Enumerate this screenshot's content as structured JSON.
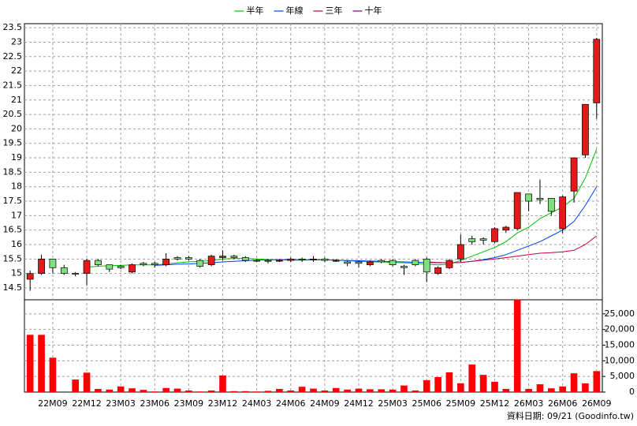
{
  "chart_data": {
    "type": "candlestick",
    "categories": [
      null,
      null,
      "22M09",
      null,
      null,
      "22M12",
      null,
      null,
      "23M03",
      null,
      null,
      "23M06",
      null,
      null,
      "23M09",
      null,
      null,
      "23M12",
      null,
      null,
      "24M03",
      null,
      null,
      "24M06",
      null,
      null,
      "24M09",
      null,
      null,
      "24M12",
      null,
      null,
      "25M03",
      null,
      null,
      "25M06",
      null,
      null,
      "25M09",
      null,
      null,
      "25M12",
      null,
      null,
      "26M03",
      null,
      null,
      "26M06",
      null,
      null,
      "26M09"
    ],
    "open": [
      14.8,
      15.0,
      15.5,
      15.2,
      15.0,
      15.0,
      15.45,
      15.3,
      15.25,
      15.05,
      15.35,
      15.35,
      15.3,
      15.55,
      15.55,
      15.45,
      15.3,
      15.55,
      15.6,
      15.55,
      15.45,
      15.45,
      15.45,
      15.45,
      15.5,
      15.5,
      15.5,
      15.45,
      15.4,
      15.4,
      15.3,
      15.45,
      15.45,
      15.25,
      15.45,
      15.5,
      15.0,
      15.2,
      15.5,
      16.2,
      16.2,
      16.1,
      16.5,
      16.55,
      17.75,
      17.6,
      17.6,
      16.55,
      17.85,
      19.1,
      20.9
    ],
    "high": [
      15.1,
      15.65,
      15.5,
      15.3,
      15.05,
      15.5,
      15.5,
      15.3,
      15.3,
      15.35,
      15.4,
      15.4,
      15.7,
      15.6,
      15.6,
      15.5,
      15.65,
      15.8,
      15.65,
      15.6,
      15.5,
      15.5,
      15.5,
      15.55,
      15.55,
      15.6,
      15.55,
      15.5,
      15.45,
      15.45,
      15.45,
      15.5,
      15.5,
      15.3,
      15.5,
      15.55,
      15.25,
      15.5,
      16.35,
      16.3,
      16.25,
      16.6,
      16.65,
      17.8,
      17.75,
      18.25,
      17.6,
      17.7,
      19.0,
      20.85,
      23.15
    ],
    "low": [
      14.4,
      14.95,
      15.0,
      14.95,
      14.9,
      14.6,
      15.25,
      15.05,
      15.15,
      15.0,
      15.25,
      15.2,
      15.25,
      15.45,
      15.45,
      15.2,
      15.25,
      15.45,
      15.5,
      15.4,
      15.4,
      15.35,
      15.4,
      15.4,
      15.4,
      15.4,
      15.4,
      15.4,
      15.25,
      15.2,
      15.25,
      15.35,
      15.25,
      14.95,
      15.25,
      14.7,
      14.95,
      15.15,
      15.4,
      16.0,
      16.0,
      16.05,
      16.4,
      16.5,
      17.15,
      17.4,
      17.0,
      16.4,
      17.45,
      19.0,
      20.35
    ],
    "close": [
      15.0,
      15.5,
      15.2,
      15.0,
      14.98,
      15.45,
      15.3,
      15.15,
      15.2,
      15.3,
      15.3,
      15.3,
      15.5,
      15.5,
      15.5,
      15.25,
      15.6,
      15.6,
      15.55,
      15.45,
      15.43,
      15.42,
      15.45,
      15.5,
      15.47,
      15.5,
      15.45,
      15.45,
      15.35,
      15.35,
      15.4,
      15.4,
      15.3,
      15.2,
      15.3,
      15.05,
      15.2,
      15.45,
      16.0,
      16.1,
      16.15,
      16.55,
      16.6,
      17.8,
      17.5,
      17.55,
      17.15,
      17.65,
      19.0,
      20.85,
      23.1
    ],
    "up_color": "#e41a1a",
    "down_color": "#7de07d",
    "ylim": [
      14.09,
      23.64
    ],
    "yticks": [
      14.5,
      15,
      15.5,
      16,
      16.5,
      17,
      17.5,
      18,
      18.5,
      19,
      19.5,
      20,
      20.5,
      21,
      21.5,
      22,
      22.5,
      23,
      23.5
    ],
    "grid": true,
    "legend": "top",
    "series": [
      {
        "name": "半年",
        "color": "#00c000",
        "values": [
          null,
          null,
          null,
          null,
          null,
          15.22,
          15.25,
          15.27,
          15.28,
          15.3,
          15.3,
          15.3,
          15.33,
          15.37,
          15.4,
          15.42,
          15.45,
          15.5,
          15.52,
          15.52,
          15.5,
          15.48,
          15.47,
          15.46,
          15.46,
          15.47,
          15.47,
          15.46,
          15.44,
          15.42,
          15.4,
          15.4,
          15.38,
          15.37,
          15.35,
          15.32,
          15.3,
          15.32,
          15.45,
          15.6,
          15.75,
          15.9,
          16.1,
          16.4,
          16.6,
          16.9,
          17.1,
          17.3,
          17.6,
          18.3,
          19.3
        ]
      },
      {
        "name": "年線",
        "color": "#0040ff",
        "values": [
          null,
          null,
          null,
          null,
          null,
          null,
          null,
          null,
          null,
          null,
          null,
          15.28,
          15.3,
          15.32,
          15.33,
          15.35,
          15.37,
          15.4,
          15.42,
          15.44,
          15.46,
          15.47,
          15.48,
          15.48,
          15.48,
          15.47,
          15.47,
          15.46,
          15.45,
          15.44,
          15.43,
          15.42,
          15.41,
          15.4,
          15.39,
          15.38,
          15.37,
          15.37,
          15.38,
          15.42,
          15.48,
          15.55,
          15.65,
          15.8,
          15.95,
          16.1,
          16.3,
          16.5,
          16.8,
          17.35,
          18.0
        ]
      },
      {
        "name": "三年",
        "color": "#c00040",
        "values": [
          null,
          null,
          null,
          null,
          null,
          null,
          null,
          null,
          null,
          null,
          null,
          null,
          null,
          null,
          null,
          null,
          null,
          null,
          null,
          null,
          null,
          null,
          null,
          null,
          null,
          null,
          null,
          null,
          null,
          null,
          null,
          null,
          null,
          null,
          null,
          15.4,
          15.38,
          15.37,
          15.38,
          15.42,
          15.46,
          15.5,
          15.55,
          15.6,
          15.65,
          15.7,
          15.72,
          15.75,
          15.8,
          16.0,
          16.3
        ]
      },
      {
        "name": "十年",
        "color": "#800080",
        "values": [
          null,
          null,
          null,
          null,
          null,
          null,
          null,
          null,
          null,
          null,
          null,
          null,
          null,
          null,
          null,
          null,
          null,
          null,
          null,
          null,
          null,
          null,
          null,
          null,
          null,
          null,
          null,
          null,
          null,
          null,
          null,
          null,
          null,
          null,
          null,
          null,
          null,
          null,
          null,
          null,
          null,
          null,
          null,
          null,
          null,
          null,
          null,
          null,
          null,
          null,
          null
        ]
      }
    ],
    "volume": {
      "color": "#ff0000",
      "values": [
        18300,
        18300,
        11000,
        0,
        4000,
        6200,
        1000,
        800,
        1800,
        1200,
        700,
        200,
        1300,
        1100,
        500,
        200,
        500,
        5300,
        300,
        300,
        200,
        400,
        1000,
        500,
        1700,
        1100,
        500,
        1300,
        800,
        1100,
        900,
        900,
        800,
        2100,
        500,
        3800,
        4800,
        6300,
        2800,
        8800,
        5500,
        3300,
        1000,
        29500,
        1000,
        2500,
        1200,
        1800,
        6000,
        2800,
        6700
      ],
      "ylim": [
        0,
        29500
      ],
      "yticks": [
        0,
        {
          "value": 5000,
          "label": "5,000"
        },
        {
          "value": 10000,
          "label": "10,000"
        },
        {
          "value": 15000,
          "label": "15,000"
        },
        {
          "value": 20000,
          "label": "20,000"
        },
        {
          "value": 25000,
          "label": "25,000"
        }
      ]
    },
    "source": "資料日期: 09/21 (Goodinfo.tw)"
  }
}
